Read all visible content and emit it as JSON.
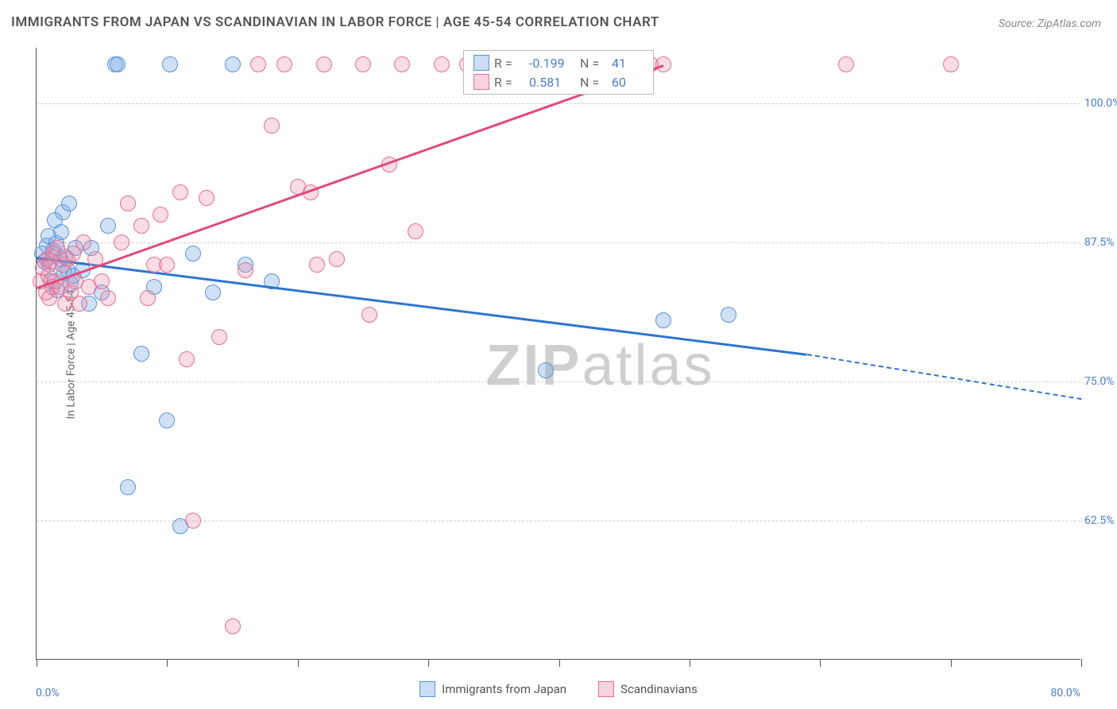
{
  "title": "IMMIGRANTS FROM JAPAN VS SCANDINAVIAN IN LABOR FORCE | AGE 45-54 CORRELATION CHART",
  "source_prefix": "Source: ",
  "source_name": "ZipAtlas.com",
  "ylabel": "In Labor Force | Age 45-54",
  "watermark_bold": "ZIP",
  "watermark_rest": "atlas",
  "chart": {
    "type": "scatter-with-trend",
    "xlim": [
      0,
      80
    ],
    "ylim": [
      50,
      105
    ],
    "xtick_positions": [
      0,
      10,
      20,
      30,
      40,
      50,
      60,
      70,
      80
    ],
    "ytick_positions": [
      62.5,
      75.0,
      87.5,
      100.0
    ],
    "ytick_labels": [
      "62.5%",
      "75.0%",
      "87.5%",
      "100.0%"
    ],
    "xmin_label": "0.0%",
    "xmax_label": "80.0%",
    "background_color": "#ffffff",
    "grid_color": "#cccccc",
    "axis_color": "#555555",
    "tick_label_color": "#4a7ecb",
    "series": [
      {
        "key": "japan",
        "label": "Immigrants from Japan",
        "color_fill": "rgba(120,170,230,0.35)",
        "color_stroke": "#5b93d6",
        "swatch_fill": "#cadef5",
        "swatch_border": "#5b93d6",
        "trend_color": "#2f74d0",
        "marker_radius": 10,
        "stats": {
          "R": "-0.199",
          "N": "41"
        },
        "trend": {
          "x1": 0,
          "y1": 86.2,
          "x2": 59,
          "y2": 77.5
        },
        "trend_extrapolate": {
          "x1": 59,
          "y1": 77.5,
          "x2": 80,
          "y2": 73.5
        },
        "points": [
          [
            0.4,
            86.5
          ],
          [
            0.6,
            85.8
          ],
          [
            0.8,
            87.2
          ],
          [
            0.9,
            88.1
          ],
          [
            1.0,
            85.5
          ],
          [
            1.1,
            84.0
          ],
          [
            1.3,
            86.8
          ],
          [
            1.4,
            89.5
          ],
          [
            1.5,
            87.4
          ],
          [
            1.6,
            83.2
          ],
          [
            1.8,
            86.0
          ],
          [
            1.9,
            88.4
          ],
          [
            2.0,
            90.2
          ],
          [
            2.1,
            84.8
          ],
          [
            2.2,
            86.2
          ],
          [
            2.4,
            85.0
          ],
          [
            2.5,
            91.0
          ],
          [
            2.6,
            83.8
          ],
          [
            2.8,
            84.5
          ],
          [
            3.0,
            87.0
          ],
          [
            3.5,
            85.0
          ],
          [
            4.0,
            82.0
          ],
          [
            4.2,
            87.0
          ],
          [
            5.0,
            83.0
          ],
          [
            5.5,
            89.0
          ],
          [
            6.0,
            103.5
          ],
          [
            6.2,
            103.5
          ],
          [
            7.0,
            65.5
          ],
          [
            8.0,
            77.5
          ],
          [
            9.0,
            83.5
          ],
          [
            10.0,
            71.5
          ],
          [
            10.2,
            103.5
          ],
          [
            11.0,
            62.0
          ],
          [
            12.0,
            86.5
          ],
          [
            13.5,
            83.0
          ],
          [
            15.0,
            103.5
          ],
          [
            16.0,
            85.5
          ],
          [
            18.0,
            84.0
          ],
          [
            39.0,
            76.0
          ],
          [
            48.0,
            80.5
          ],
          [
            53.0,
            81.0
          ]
        ]
      },
      {
        "key": "scandinavian",
        "label": "Scandinavians",
        "color_fill": "rgba(240,140,170,0.30)",
        "color_stroke": "#e36f94",
        "swatch_fill": "#f7d3de",
        "swatch_border": "#e36f94",
        "trend_color": "#e24a79",
        "marker_radius": 10,
        "stats": {
          "R": "0.581",
          "N": "60"
        },
        "trend": {
          "x1": 0,
          "y1": 83.5,
          "x2": 48,
          "y2": 103.5
        },
        "points": [
          [
            0.3,
            84.0
          ],
          [
            0.5,
            85.2
          ],
          [
            0.7,
            83.0
          ],
          [
            0.8,
            86.0
          ],
          [
            0.9,
            84.5
          ],
          [
            1.0,
            82.5
          ],
          [
            1.1,
            85.8
          ],
          [
            1.2,
            83.5
          ],
          [
            1.3,
            86.5
          ],
          [
            1.4,
            84.0
          ],
          [
            1.6,
            87.0
          ],
          [
            1.8,
            83.5
          ],
          [
            2.0,
            85.5
          ],
          [
            2.2,
            82.0
          ],
          [
            2.4,
            86.0
          ],
          [
            2.6,
            83.0
          ],
          [
            2.8,
            86.5
          ],
          [
            3.0,
            84.0
          ],
          [
            3.3,
            82.0
          ],
          [
            3.6,
            87.5
          ],
          [
            4.0,
            83.5
          ],
          [
            4.5,
            86.0
          ],
          [
            5.0,
            84.0
          ],
          [
            5.5,
            82.5
          ],
          [
            6.5,
            87.5
          ],
          [
            7.0,
            91.0
          ],
          [
            8.0,
            89.0
          ],
          [
            8.5,
            82.5
          ],
          [
            9.0,
            85.5
          ],
          [
            9.5,
            90.0
          ],
          [
            10.0,
            85.5
          ],
          [
            11.0,
            92.0
          ],
          [
            11.5,
            77.0
          ],
          [
            12.0,
            62.5
          ],
          [
            13.0,
            91.5
          ],
          [
            14.0,
            79.0
          ],
          [
            15.0,
            53.0
          ],
          [
            16.0,
            85.0
          ],
          [
            17.0,
            103.5
          ],
          [
            18.0,
            98.0
          ],
          [
            19.0,
            103.5
          ],
          [
            20.0,
            92.5
          ],
          [
            21.0,
            92.0
          ],
          [
            21.5,
            85.5
          ],
          [
            22.0,
            103.5
          ],
          [
            23.0,
            86.0
          ],
          [
            25.0,
            103.5
          ],
          [
            25.5,
            81.0
          ],
          [
            27.0,
            94.5
          ],
          [
            28.0,
            103.5
          ],
          [
            29.0,
            88.5
          ],
          [
            31.0,
            103.5
          ],
          [
            33.0,
            103.5
          ],
          [
            36.0,
            103.5
          ],
          [
            38.0,
            103.5
          ],
          [
            42.0,
            103.5
          ],
          [
            47.0,
            103.5
          ],
          [
            48.0,
            103.5
          ],
          [
            62.0,
            103.5
          ],
          [
            70.0,
            103.5
          ]
        ]
      }
    ]
  },
  "stats_box": {
    "R_label": "R = ",
    "N_label": "N = "
  }
}
